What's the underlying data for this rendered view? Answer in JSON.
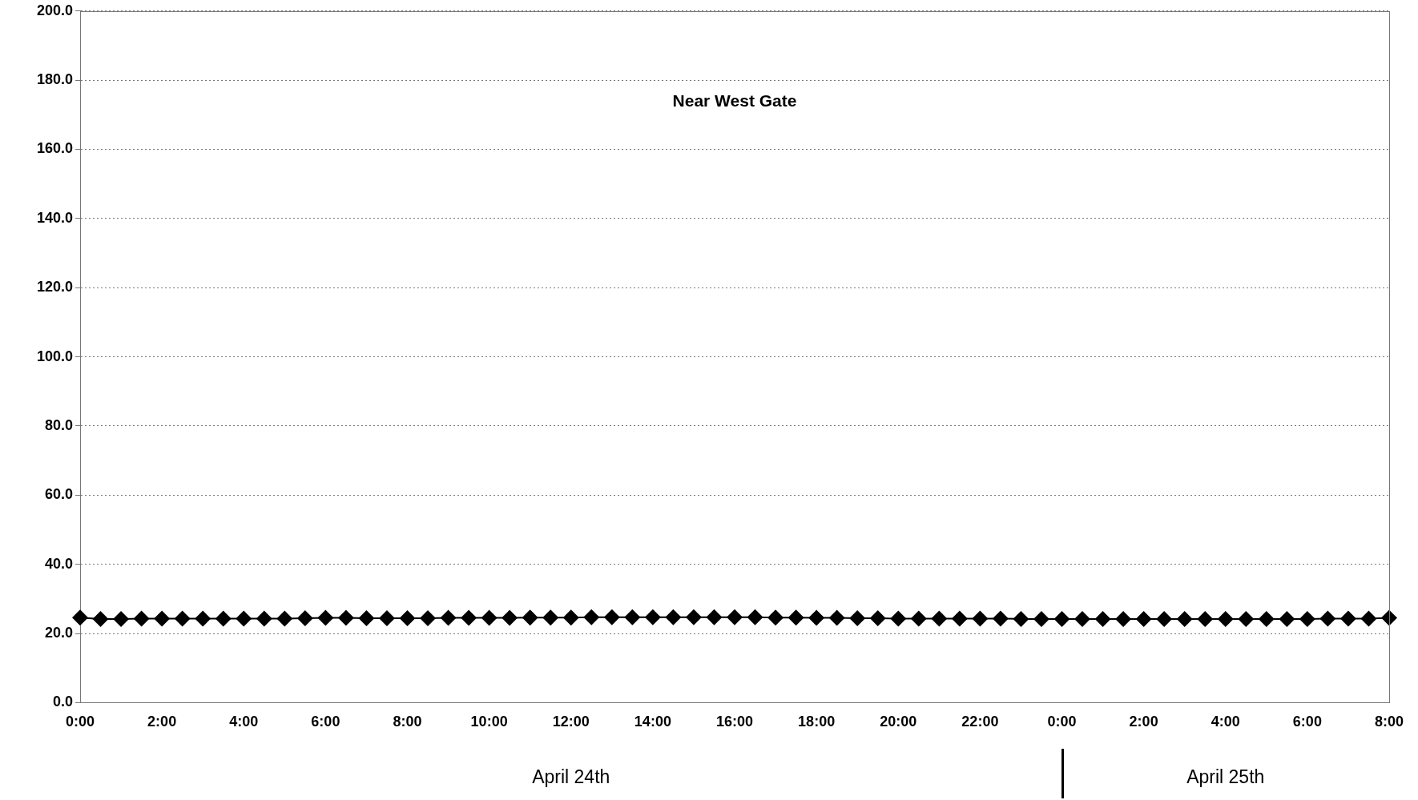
{
  "chart_data": {
    "type": "line",
    "title": "Near West Gate",
    "annotations": [
      "April 24th",
      "April 25th"
    ],
    "x": [
      "--04-24T00:00",
      "--04-24T00:30",
      "--04-24T01:00",
      "--04-24T01:30",
      "--04-24T02:00",
      "--04-24T02:30",
      "--04-24T03:00",
      "--04-24T03:30",
      "--04-24T04:00",
      "--04-24T04:30",
      "--04-24T05:00",
      "--04-24T05:30",
      "--04-24T06:00",
      "--04-24T06:30",
      "--04-24T07:00",
      "--04-24T07:30",
      "--04-24T08:00",
      "--04-24T08:30",
      "--04-24T09:00",
      "--04-24T09:30",
      "--04-24T10:00",
      "--04-24T10:30",
      "--04-24T11:00",
      "--04-24T11:30",
      "--04-24T12:00",
      "--04-24T12:30",
      "--04-24T13:00",
      "--04-24T13:30",
      "--04-24T14:00",
      "--04-24T14:30",
      "--04-24T15:00",
      "--04-24T15:30",
      "--04-24T16:00",
      "--04-24T16:30",
      "--04-24T17:00",
      "--04-24T17:30",
      "--04-24T18:00",
      "--04-24T18:30",
      "--04-24T19:00",
      "--04-24T19:30",
      "--04-24T20:00",
      "--04-24T20:30",
      "--04-24T21:00",
      "--04-24T21:30",
      "--04-24T22:00",
      "--04-24T22:30",
      "--04-24T23:00",
      "--04-24T23:30",
      "--04-25T00:00",
      "--04-25T00:30",
      "--04-25T01:00",
      "--04-25T01:30",
      "--04-25T02:00",
      "--04-25T02:30",
      "--04-25T03:00",
      "--04-25T03:30",
      "--04-25T04:00",
      "--04-25T04:30",
      "--04-25T05:00",
      "--04-25T05:30",
      "--04-25T06:00",
      "--04-25T06:30",
      "--04-25T07:00",
      "--04-25T07:30",
      "--04-25T08:00"
    ],
    "series": [
      {
        "color": "#000000",
        "values": [
          24.6,
          24.2,
          24.2,
          24.3,
          24.3,
          24.3,
          24.3,
          24.3,
          24.3,
          24.3,
          24.3,
          24.4,
          24.5,
          24.5,
          24.4,
          24.4,
          24.4,
          24.4,
          24.5,
          24.5,
          24.5,
          24.5,
          24.6,
          24.6,
          24.6,
          24.7,
          24.7,
          24.7,
          24.7,
          24.7,
          24.7,
          24.7,
          24.7,
          24.7,
          24.6,
          24.6,
          24.5,
          24.5,
          24.4,
          24.4,
          24.3,
          24.3,
          24.3,
          24.3,
          24.3,
          24.3,
          24.2,
          24.2,
          24.2,
          24.2,
          24.2,
          24.2,
          24.2,
          24.2,
          24.2,
          24.2,
          24.2,
          24.2,
          24.2,
          24.2,
          24.2,
          24.3,
          24.3,
          24.3,
          24.5
        ]
      }
    ],
    "xlim": [
      "--04-24T00:00",
      "--04-25T08:00"
    ],
    "xticks": [
      {
        "value": "--04-24T00:00",
        "label": "0:00"
      },
      {
        "value": "--04-24T02:00",
        "label": "2:00"
      },
      {
        "value": "--04-24T04:00",
        "label": "4:00"
      },
      {
        "value": "--04-24T06:00",
        "label": "6:00"
      },
      {
        "value": "--04-24T08:00",
        "label": "8:00"
      },
      {
        "value": "--04-24T10:00",
        "label": "10:00"
      },
      {
        "value": "--04-24T12:00",
        "label": "12:00"
      },
      {
        "value": "--04-24T14:00",
        "label": "14:00"
      },
      {
        "value": "--04-24T16:00",
        "label": "16:00"
      },
      {
        "value": "--04-24T18:00",
        "label": "18:00"
      },
      {
        "value": "--04-24T20:00",
        "label": "20:00"
      },
      {
        "value": "--04-24T22:00",
        "label": "22:00"
      },
      {
        "value": "--04-25T00:00",
        "label": "0:00"
      },
      {
        "value": "--04-25T02:00",
        "label": "2:00"
      },
      {
        "value": "--04-25T04:00",
        "label": "4:00"
      },
      {
        "value": "--04-25T06:00",
        "label": "6:00"
      },
      {
        "value": "--04-25T08:00",
        "label": "8:00"
      }
    ],
    "ylim": [
      0,
      200
    ],
    "yticks": [
      {
        "value": 0,
        "label": "0.0"
      },
      {
        "value": 20,
        "label": "20.0"
      },
      {
        "value": 40,
        "label": "40.0"
      },
      {
        "value": 60,
        "label": "60.0"
      },
      {
        "value": 80,
        "label": "80.0"
      },
      {
        "value": 100,
        "label": "100.0"
      },
      {
        "value": 120,
        "label": "120.0"
      },
      {
        "value": 140,
        "label": "140.0"
      },
      {
        "value": 160,
        "label": "160.0"
      },
      {
        "value": 180,
        "label": "180.0"
      },
      {
        "value": 200,
        "label": "200.0"
      }
    ],
    "grid": "y",
    "marker": "diamond",
    "line_style": "solid"
  }
}
